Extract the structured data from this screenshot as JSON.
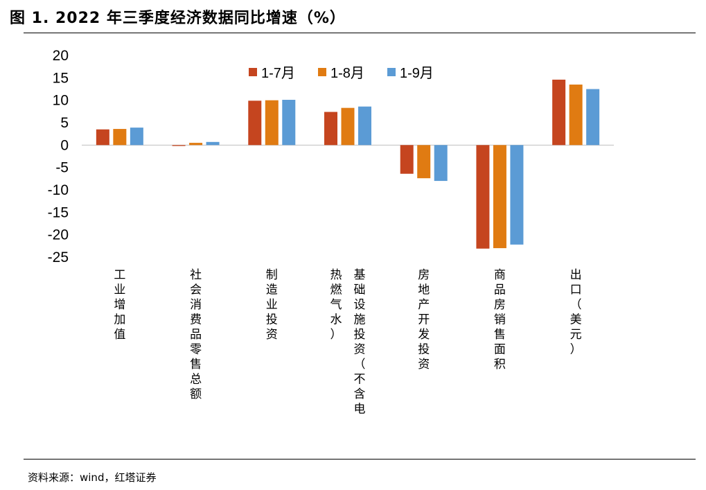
{
  "title": "图 1. 2022 年三季度经济数据同比增速（%）",
  "source": "资料来源：wind，红塔证券",
  "chart_data": {
    "type": "bar",
    "categories": [
      "工业增加值",
      "社会消费品零售总额",
      "制造业投资",
      "基础设施投资（不含电热燃气水）",
      "房地产开发投资",
      "商品房销售面积",
      "出口（美元）"
    ],
    "category_columns": [
      [
        "工业增加值"
      ],
      [
        "社会消费品零售总额"
      ],
      [
        "制造业投资"
      ],
      [
        "基础设施投资（不含电",
        "热燃气水）"
      ],
      [
        "房地产开发投资"
      ],
      [
        "商品房销售面积"
      ],
      [
        "出口（美元）"
      ]
    ],
    "series": [
      {
        "name": "1-7月",
        "color": "#C5451F",
        "values": [
          3.5,
          -0.2,
          9.9,
          7.4,
          -6.4,
          -23.1,
          14.6
        ]
      },
      {
        "name": "1-8月",
        "color": "#E07B12",
        "values": [
          3.6,
          0.5,
          10.0,
          8.3,
          -7.4,
          -23.0,
          13.5
        ]
      },
      {
        "name": "1-9月",
        "color": "#5B9BD5",
        "values": [
          3.9,
          0.7,
          10.1,
          8.6,
          -8.0,
          -22.2,
          12.5
        ]
      }
    ],
    "ylim": [
      -25,
      20
    ],
    "yticks": [
      20,
      15,
      10,
      5,
      0,
      -5,
      -10,
      -15,
      -20,
      -25
    ],
    "ytick_labels": [
      "20",
      "15",
      "10",
      "5",
      "0",
      "-5",
      "-10",
      "-15",
      "-20",
      "-25"
    ],
    "xlabel": "",
    "ylabel": "",
    "grid": false,
    "legend_position": "top-center"
  }
}
